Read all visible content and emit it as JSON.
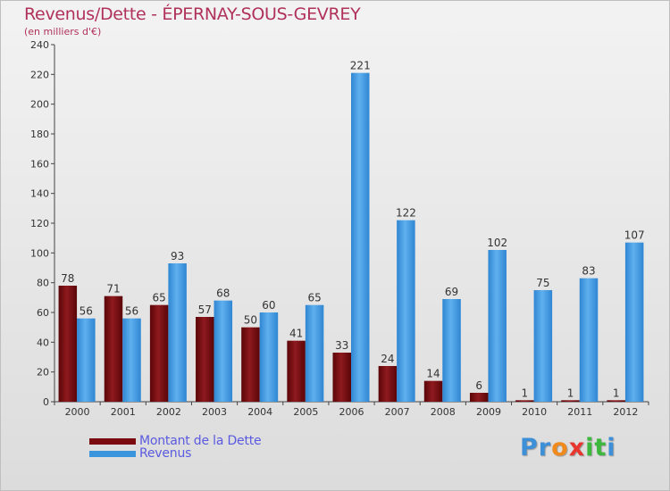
{
  "title": "Revenus/Dette - ÉPERNAY-SOUS-GEVREY",
  "subtitle": "(en milliers d'€)",
  "colors": {
    "dette": "#7a0c10",
    "revenus": "#3b95dd",
    "title": "#b0325a",
    "legend_text": "#5a5ae0"
  },
  "legend": [
    {
      "label": "Montant de la Dette",
      "color": "#7a0c10"
    },
    {
      "label": "Revenus",
      "color": "#3b95dd"
    }
  ],
  "logo": {
    "letters": [
      "P",
      "r",
      "o",
      "x",
      "i",
      "t",
      "i"
    ],
    "colors": [
      "#3d8fd8",
      "#3d8fd8",
      "#f08a1c",
      "#e8352e",
      "#3db83d",
      "#3db83d",
      "#3d8fd8"
    ]
  },
  "chart_data": {
    "type": "bar",
    "title": "Revenus/Dette - ÉPERNAY-SOUS-GEVREY",
    "ylabel": "(en milliers d'€)",
    "xlabel": "",
    "categories": [
      "2000",
      "2001",
      "2002",
      "2003",
      "2004",
      "2005",
      "2006",
      "2007",
      "2008",
      "2009",
      "2010",
      "2011",
      "2012"
    ],
    "series": [
      {
        "name": "Montant de la Dette",
        "values": [
          78,
          71,
          65,
          57,
          50,
          41,
          33,
          24,
          14,
          6,
          1,
          1,
          1
        ]
      },
      {
        "name": "Revenus",
        "values": [
          56,
          56,
          93,
          68,
          60,
          65,
          221,
          122,
          69,
          102,
          75,
          83,
          107
        ]
      }
    ],
    "ylim": [
      0,
      240
    ],
    "yticks": [
      0,
      20,
      40,
      60,
      80,
      100,
      120,
      140,
      160,
      180,
      200,
      220,
      240
    ],
    "grid": false,
    "legend_position": "bottom-left"
  }
}
